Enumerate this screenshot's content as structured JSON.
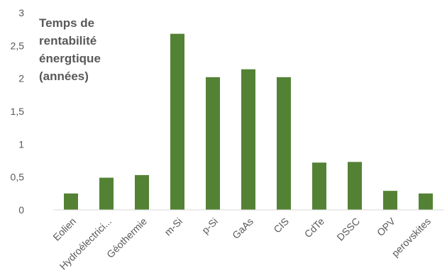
{
  "chart_data": {
    "type": "bar",
    "title_lines": [
      "Temps de",
      "rentabilité",
      "énergtique",
      "(années)"
    ],
    "categories": [
      "Eolien",
      "Hydroélectrici...",
      "Géothermie",
      "m-Si",
      "p-Si",
      "GaAs",
      "CIS",
      "CdTe",
      "DSSC",
      "OPV",
      "perovskites"
    ],
    "values": [
      0.25,
      0.49,
      0.53,
      2.68,
      2.02,
      2.14,
      2.02,
      0.72,
      0.73,
      0.29,
      0.25
    ],
    "yticks": [
      "0",
      "0,5",
      "1",
      "1,5",
      "2",
      "2,5",
      "3"
    ],
    "ylim": [
      0,
      3
    ],
    "grid": false,
    "legend": "none",
    "bar_color": "#548235"
  }
}
